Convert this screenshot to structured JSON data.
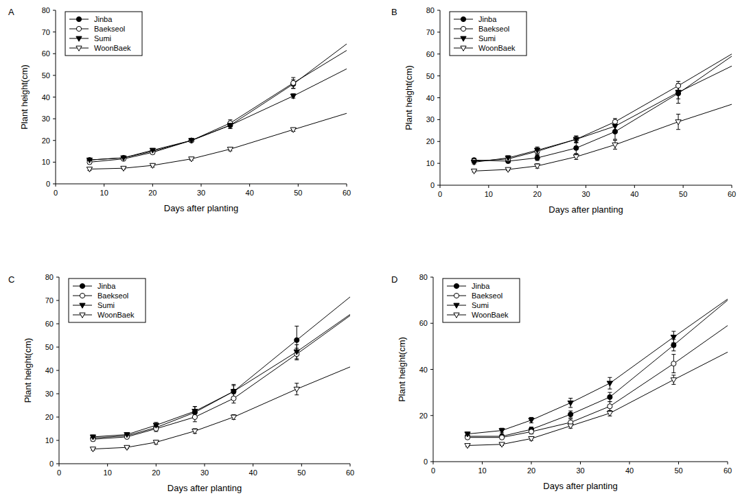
{
  "chart_data": [
    {
      "type": "line",
      "title": "A",
      "x_label": "Days after planting",
      "y_label": "Plant height(cm)",
      "x": [
        7,
        14,
        20,
        28,
        36,
        49
      ],
      "fit_x": [
        7,
        14,
        20,
        28,
        36,
        49,
        60
      ],
      "xlim": [
        0,
        60
      ],
      "xticks": [
        0,
        10,
        20,
        30,
        40,
        50,
        60
      ],
      "ylim": [
        0,
        80
      ],
      "yticks": [
        0,
        10,
        20,
        30,
        40,
        50,
        60,
        70,
        80
      ],
      "legend": "upper left",
      "grid": false,
      "series": [
        {
          "name": "Jinba",
          "color": "#000000",
          "marker": "circle",
          "values": [
            11,
            12,
            15,
            20,
            27,
            46
          ],
          "errors": [
            0.8,
            0.6,
            0.8,
            0.8,
            1.5,
            2
          ],
          "fit": [
            11,
            12,
            15,
            20,
            27,
            46,
            64.5
          ]
        },
        {
          "name": "Baekseol",
          "color": "#000000",
          "marker": "circle-open",
          "values": [
            10,
            11.5,
            14.5,
            20,
            28,
            46.5
          ],
          "errors": [
            0.8,
            0.6,
            0.8,
            0.8,
            1.5,
            2.5
          ],
          "fit": [
            10,
            11.5,
            14.5,
            20,
            28,
            46.5,
            61.5
          ]
        },
        {
          "name": "Sumi",
          "color": "#000000",
          "marker": "triangle-down",
          "values": [
            11,
            12,
            15.5,
            20,
            27,
            40.5
          ],
          "errors": [
            0.8,
            0.6,
            0.8,
            0.8,
            1.5,
            1
          ],
          "fit": [
            11,
            12,
            15.5,
            20,
            27,
            40.5,
            53
          ]
        },
        {
          "name": "WoonBaek",
          "color": "#000000",
          "marker": "triangle-down-open",
          "values": [
            6.8,
            7.2,
            8.5,
            11.5,
            16,
            25
          ],
          "errors": [
            0.6,
            0.5,
            0.8,
            0.6,
            0.8,
            0.8
          ],
          "fit": [
            6.8,
            7.2,
            8.5,
            11.5,
            16,
            25,
            32.5
          ]
        }
      ]
    },
    {
      "type": "line",
      "title": "B",
      "x_label": "Days after planting",
      "y_label": "Plant height(cm)",
      "x": [
        7,
        14,
        20,
        28,
        36,
        49
      ],
      "fit_x": [
        7,
        14,
        20,
        28,
        36,
        49,
        60
      ],
      "xlim": [
        0,
        60
      ],
      "xticks": [
        0,
        10,
        20,
        30,
        40,
        50,
        60
      ],
      "ylim": [
        0,
        80
      ],
      "yticks": [
        0,
        10,
        20,
        30,
        40,
        50,
        60,
        70,
        80
      ],
      "legend": "upper left",
      "grid": false,
      "series": [
        {
          "name": "Jinba",
          "color": "#000000",
          "marker": "circle",
          "values": [
            11.5,
            11,
            12.5,
            17,
            24.5,
            42
          ],
          "errors": [
            0.8,
            0.8,
            1.2,
            2.5,
            3.5,
            4.5
          ],
          "fit": [
            11.5,
            11,
            12.5,
            17,
            24.5,
            42,
            59
          ]
        },
        {
          "name": "Baekseol",
          "color": "#000000",
          "marker": "circle-open",
          "values": [
            11,
            12,
            15.5,
            21,
            29,
            45.5
          ],
          "errors": [
            0.8,
            0.8,
            1.5,
            1.5,
            1.5,
            2
          ],
          "fit": [
            11,
            12,
            15.5,
            21,
            29,
            45.5,
            60
          ]
        },
        {
          "name": "Sumi",
          "color": "#000000",
          "marker": "triangle-down",
          "values": [
            10.5,
            12.5,
            16,
            21,
            27,
            42.5
          ],
          "errors": [
            0.8,
            1,
            1.5,
            1.5,
            2,
            3
          ],
          "fit": [
            10.5,
            12.5,
            16,
            21,
            27,
            42.5,
            54.5
          ]
        },
        {
          "name": "WoonBaek",
          "color": "#000000",
          "marker": "triangle-down-open",
          "values": [
            6.5,
            7.2,
            8.8,
            13,
            18.5,
            29
          ],
          "errors": [
            0.5,
            0.5,
            1,
            1.2,
            2,
            3.5
          ],
          "fit": [
            6.5,
            7.2,
            8.8,
            13,
            18.5,
            29,
            37
          ]
        }
      ]
    },
    {
      "type": "line",
      "title": "C",
      "x_label": "Days after planting",
      "y_label": "Plant height(cm)",
      "x": [
        7,
        14,
        20,
        28,
        36,
        49
      ],
      "fit_x": [
        7,
        14,
        20,
        28,
        36,
        49,
        60
      ],
      "xlim": [
        0,
        60
      ],
      "xticks": [
        0,
        10,
        20,
        30,
        40,
        50,
        60
      ],
      "ylim": [
        0,
        80
      ],
      "yticks": [
        0,
        10,
        20,
        30,
        40,
        50,
        60,
        70,
        80
      ],
      "legend": "upper left",
      "grid": false,
      "series": [
        {
          "name": "Jinba",
          "color": "#000000",
          "marker": "circle",
          "values": [
            11,
            12,
            15.5,
            22,
            31,
            53
          ],
          "errors": [
            0.8,
            0.8,
            1.2,
            2.5,
            3,
            6
          ],
          "fit": [
            11,
            12,
            15.5,
            22,
            31,
            53,
            71.5
          ]
        },
        {
          "name": "Baekseol",
          "color": "#000000",
          "marker": "circle-open",
          "values": [
            10.5,
            11.5,
            15,
            20,
            28,
            47
          ],
          "errors": [
            0.8,
            0.8,
            1.2,
            2,
            2,
            2.5
          ],
          "fit": [
            10.5,
            11.5,
            15,
            20,
            28,
            47,
            63.5
          ]
        },
        {
          "name": "Sumi",
          "color": "#000000",
          "marker": "triangle-down",
          "values": [
            11.5,
            12.5,
            16.5,
            22.5,
            31,
            48
          ],
          "errors": [
            0.8,
            0.8,
            1.2,
            2,
            2.5,
            3
          ],
          "fit": [
            11.5,
            12.5,
            16.5,
            22.5,
            31,
            48,
            64
          ]
        },
        {
          "name": "WoonBaek",
          "color": "#000000",
          "marker": "triangle-down-open",
          "values": [
            6.3,
            7,
            9.2,
            14,
            20,
            32
          ],
          "errors": [
            0.5,
            0.5,
            0.8,
            1,
            1,
            2.5
          ],
          "fit": [
            6.3,
            7,
            9.2,
            14,
            20,
            32,
            41.5
          ]
        }
      ]
    },
    {
      "type": "line",
      "title": "D",
      "x_label": "Days after planting",
      "y_label": "Plant height(cm)",
      "x": [
        7,
        14,
        20,
        28,
        36,
        49
      ],
      "fit_x": [
        7,
        14,
        20,
        28,
        36,
        49,
        60
      ],
      "xlim": [
        0,
        60
      ],
      "xticks": [
        0,
        10,
        20,
        30,
        40,
        50,
        60
      ],
      "ylim": [
        0,
        80
      ],
      "yticks": [
        0,
        20,
        40,
        60,
        80
      ],
      "legend": "upper left",
      "grid": false,
      "series": [
        {
          "name": "Jinba",
          "color": "#000000",
          "marker": "circle",
          "values": [
            11,
            11,
            14,
            20.5,
            28,
            50.5
          ],
          "errors": [
            0.8,
            0.8,
            1,
            1.5,
            2,
            2.5
          ],
          "fit": [
            11,
            11,
            14,
            20.5,
            28,
            50.5,
            70
          ]
        },
        {
          "name": "Baekseol",
          "color": "#000000",
          "marker": "circle-open",
          "values": [
            10.5,
            10.5,
            13,
            17,
            24,
            42.5
          ],
          "errors": [
            0.8,
            0.8,
            1,
            1.5,
            2,
            4
          ],
          "fit": [
            10.5,
            10.5,
            13,
            17,
            24,
            42.5,
            59
          ]
        },
        {
          "name": "Sumi",
          "color": "#000000",
          "marker": "triangle-down",
          "values": [
            12,
            13.5,
            18,
            25.5,
            34,
            54
          ],
          "errors": [
            0.8,
            1,
            1.2,
            2,
            2.5,
            2.5
          ],
          "fit": [
            12,
            13.5,
            18,
            25.5,
            34,
            54,
            70.5
          ]
        },
        {
          "name": "WoonBaek",
          "color": "#000000",
          "marker": "triangle-down-open",
          "values": [
            7,
            7.5,
            10,
            15.5,
            21,
            35.5
          ],
          "errors": [
            0.5,
            0.5,
            0.8,
            1,
            1.2,
            2
          ],
          "fit": [
            7,
            7.5,
            10,
            15.5,
            21,
            35.5,
            47.5
          ]
        }
      ]
    }
  ]
}
